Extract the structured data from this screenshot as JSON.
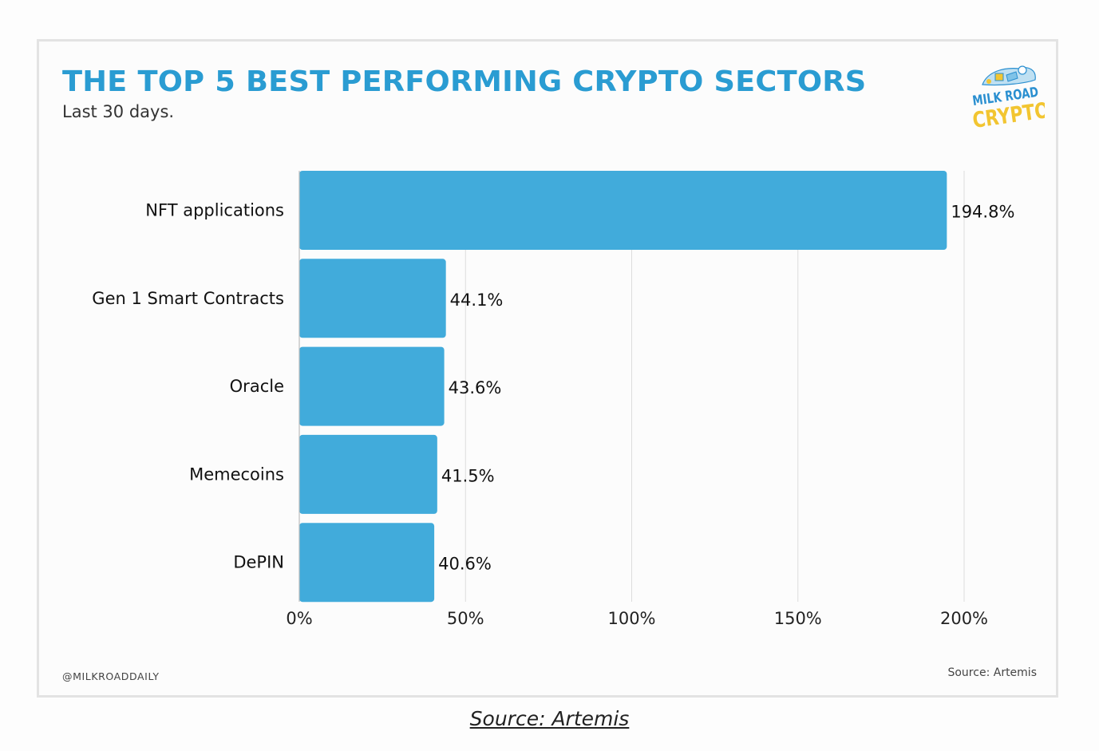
{
  "chart_data": {
    "type": "bar",
    "orientation": "horizontal",
    "title": "THE TOP 5 BEST PERFORMING CRYPTO SECTORS",
    "subtitle": "Last 30 days.",
    "categories": [
      "NFT applications",
      "Gen 1 Smart Contracts",
      "Oracle",
      "Memecoins",
      "DePIN"
    ],
    "values": [
      194.8,
      44.1,
      43.6,
      41.5,
      40.6
    ],
    "value_labels": [
      "194.8%",
      "44.1%",
      "43.6%",
      "41.5%",
      "40.6%"
    ],
    "xlim": [
      0,
      200
    ],
    "x_ticks": [
      0,
      50,
      100,
      150,
      200
    ],
    "x_tick_labels": [
      "0%",
      "50%",
      "100%",
      "150%",
      "200%"
    ],
    "xlabel": "",
    "ylabel": "",
    "grid": "vertical",
    "bar_color": "#41abdb",
    "grid_color": "#dcdcdc"
  },
  "brand": {
    "logo_line1": "MILK ROAD",
    "logo_line2": "CRYPTO",
    "logo_color_blue": "#2a8fd0",
    "logo_color_yellow": "#f2c531"
  },
  "footer": {
    "handle": "@MILKROADDAILY",
    "source_inner": "Source: Artemis",
    "source_caption": "Source: Artemis"
  },
  "colors": {
    "title": "#2a9cd2",
    "border": "#e3e3e3"
  }
}
